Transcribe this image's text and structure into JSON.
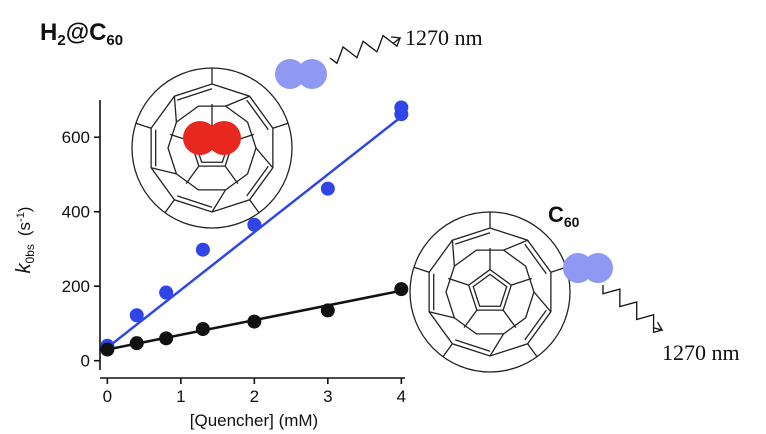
{
  "chart_data": {
    "type": "scatter",
    "annotations": [
      {
        "text": [
          "H",
          "2",
          "@C",
          "60"
        ]
      },
      {
        "text": [
          "C",
          "60"
        ]
      },
      {
        "text": "1270 nm"
      },
      {
        "text": "1270 nm"
      }
    ],
    "xlabel": "[Quencher]  (mM)",
    "ylabel": [
      "k",
      "0bs",
      "(s",
      "-1",
      ")"
    ],
    "xlim": [
      -0.1,
      4.05
    ],
    "ylim": [
      -25,
      700
    ],
    "xticks": [
      0,
      1,
      2,
      3,
      4
    ],
    "yticks": [
      0,
      200,
      400,
      600
    ],
    "series": [
      {
        "color": "#2f45e6",
        "x": [
          0,
          0.4,
          0.8,
          1.3,
          2,
          3,
          4,
          4
        ],
        "values": [
          40,
          122,
          183,
          298,
          365,
          462,
          680,
          662
        ],
        "fit": {
          "x": [
            0,
            4
          ],
          "values": [
            35,
            655
          ]
        }
      },
      {
        "color": "#111111",
        "x": [
          0,
          0.4,
          0.8,
          1.3,
          2,
          3,
          4
        ],
        "values": [
          30,
          47,
          60,
          85,
          105,
          135,
          192
        ],
        "fit": {
          "x": [
            0,
            4
          ],
          "values": [
            30,
            188
          ]
        }
      }
    ]
  }
}
